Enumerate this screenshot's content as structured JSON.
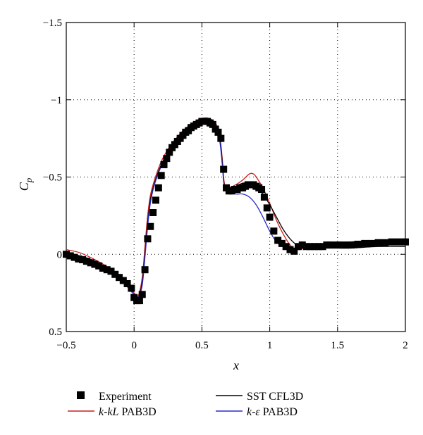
{
  "chart_data": {
    "type": "scatter",
    "title": "",
    "xlabel": "x",
    "ylabel_main": "C",
    "ylabel_sub": "p",
    "xlim": [
      -0.5,
      2
    ],
    "ylim": [
      0.5,
      -1.5
    ],
    "y_inverted": true,
    "grid": "dotted",
    "legend_position": "below",
    "x_ticks": [
      -0.5,
      0,
      0.5,
      1,
      1.5,
      2
    ],
    "x_tick_labels": [
      "−0.5",
      "0",
      "0.5",
      "1",
      "1.5",
      "2"
    ],
    "y_ticks": [
      -1.5,
      -1,
      -0.5,
      0,
      0.5
    ],
    "y_tick_labels": [
      "−1.5",
      "−1",
      "−0.5",
      "0",
      "0.5"
    ],
    "series": [
      {
        "name": "Experiment",
        "kind": "markers",
        "color": "#000000",
        "x": [
          -0.5,
          -0.47,
          -0.44,
          -0.41,
          -0.38,
          -0.35,
          -0.32,
          -0.29,
          -0.26,
          -0.23,
          -0.2,
          -0.17,
          -0.14,
          -0.11,
          -0.08,
          -0.05,
          -0.02,
          0.0,
          0.02,
          0.04,
          0.06,
          0.08,
          0.1,
          0.12,
          0.14,
          0.16,
          0.18,
          0.2,
          0.22,
          0.24,
          0.26,
          0.28,
          0.3,
          0.32,
          0.34,
          0.36,
          0.38,
          0.4,
          0.42,
          0.44,
          0.46,
          0.48,
          0.5,
          0.52,
          0.54,
          0.56,
          0.58,
          0.6,
          0.62,
          0.64,
          0.66,
          0.68,
          0.7,
          0.72,
          0.74,
          0.76,
          0.78,
          0.8,
          0.82,
          0.84,
          0.86,
          0.88,
          0.9,
          0.92,
          0.94,
          0.96,
          0.98,
          1.0,
          1.03,
          1.06,
          1.09,
          1.12,
          1.15,
          1.18,
          1.21,
          1.24,
          1.27,
          1.3,
          1.33,
          1.36,
          1.39,
          1.42,
          1.45,
          1.5,
          1.55,
          1.6,
          1.65,
          1.7,
          1.75,
          1.8,
          1.85,
          1.9,
          1.95,
          2.0
        ],
        "y": [
          0.0,
          0.01,
          0.02,
          0.03,
          0.035,
          0.045,
          0.055,
          0.065,
          0.075,
          0.09,
          0.1,
          0.11,
          0.13,
          0.15,
          0.17,
          0.19,
          0.22,
          0.28,
          0.3,
          0.3,
          0.26,
          0.1,
          -0.1,
          -0.18,
          -0.27,
          -0.35,
          -0.43,
          -0.51,
          -0.58,
          -0.62,
          -0.66,
          -0.69,
          -0.71,
          -0.73,
          -0.75,
          -0.77,
          -0.79,
          -0.8,
          -0.82,
          -0.83,
          -0.84,
          -0.85,
          -0.86,
          -0.86,
          -0.86,
          -0.85,
          -0.84,
          -0.81,
          -0.79,
          -0.75,
          -0.55,
          -0.43,
          -0.41,
          -0.41,
          -0.42,
          -0.42,
          -0.43,
          -0.43,
          -0.44,
          -0.45,
          -0.45,
          -0.45,
          -0.44,
          -0.43,
          -0.42,
          -0.37,
          -0.3,
          -0.24,
          -0.15,
          -0.09,
          -0.07,
          -0.05,
          -0.03,
          -0.02,
          -0.05,
          -0.06,
          -0.05,
          -0.05,
          -0.05,
          -0.05,
          -0.05,
          -0.06,
          -0.06,
          -0.06,
          -0.06,
          -0.06,
          -0.065,
          -0.07,
          -0.07,
          -0.075,
          -0.075,
          -0.08,
          -0.08,
          -0.08
        ]
      },
      {
        "name": "k-kL PAB3D",
        "kind": "line",
        "color": "#cc1f1f",
        "x": [
          -0.5,
          -0.4,
          -0.3,
          -0.2,
          -0.1,
          -0.05,
          0.0,
          0.03,
          0.06,
          0.08,
          0.1,
          0.12,
          0.15,
          0.2,
          0.25,
          0.3,
          0.35,
          0.4,
          0.45,
          0.5,
          0.55,
          0.6,
          0.63,
          0.65,
          0.66,
          0.67,
          0.68,
          0.7,
          0.75,
          0.8,
          0.85,
          0.88,
          0.9,
          0.95,
          1.0,
          1.05,
          1.1,
          1.15,
          1.2,
          1.25,
          1.3,
          1.4,
          1.5,
          1.6,
          1.8,
          2.0
        ],
        "y": [
          -0.03,
          -0.01,
          0.03,
          0.08,
          0.15,
          0.2,
          0.25,
          0.27,
          0.15,
          -0.05,
          -0.25,
          -0.38,
          -0.48,
          -0.6,
          -0.68,
          -0.74,
          -0.79,
          -0.83,
          -0.86,
          -0.88,
          -0.88,
          -0.85,
          -0.77,
          -0.62,
          -0.5,
          -0.44,
          -0.43,
          -0.43,
          -0.45,
          -0.48,
          -0.52,
          -0.52,
          -0.5,
          -0.43,
          -0.33,
          -0.22,
          -0.13,
          -0.06,
          -0.03,
          -0.04,
          -0.05,
          -0.06,
          -0.07,
          -0.08,
          -0.09,
          -0.1
        ]
      },
      {
        "name": "SST CFL3D",
        "kind": "line",
        "color": "#000000",
        "x": [
          -0.5,
          -0.4,
          -0.3,
          -0.2,
          -0.1,
          -0.05,
          0.0,
          0.03,
          0.06,
          0.08,
          0.1,
          0.12,
          0.15,
          0.2,
          0.25,
          0.3,
          0.35,
          0.4,
          0.45,
          0.5,
          0.55,
          0.6,
          0.63,
          0.65,
          0.66,
          0.67,
          0.68,
          0.7,
          0.75,
          0.8,
          0.85,
          0.9,
          0.95,
          1.0,
          1.05,
          1.1,
          1.15,
          1.2,
          1.25,
          1.3,
          1.35,
          1.4,
          1.5,
          1.6,
          1.8,
          2.0
        ],
        "y": [
          -0.01,
          0.01,
          0.04,
          0.09,
          0.16,
          0.21,
          0.26,
          0.28,
          0.18,
          0.0,
          -0.2,
          -0.35,
          -0.46,
          -0.58,
          -0.66,
          -0.72,
          -0.77,
          -0.81,
          -0.84,
          -0.86,
          -0.86,
          -0.83,
          -0.76,
          -0.6,
          -0.48,
          -0.43,
          -0.42,
          -0.42,
          -0.44,
          -0.46,
          -0.46,
          -0.44,
          -0.39,
          -0.32,
          -0.24,
          -0.16,
          -0.1,
          -0.06,
          -0.04,
          -0.04,
          -0.04,
          -0.04,
          -0.04,
          -0.04,
          -0.05,
          -0.05
        ]
      },
      {
        "name": "k-ε PAB3D",
        "kind": "line",
        "color": "#2a2acc",
        "x": [
          -0.5,
          -0.4,
          -0.3,
          -0.2,
          -0.1,
          -0.05,
          0.0,
          0.03,
          0.06,
          0.08,
          0.1,
          0.12,
          0.15,
          0.2,
          0.25,
          0.3,
          0.35,
          0.4,
          0.45,
          0.5,
          0.55,
          0.6,
          0.63,
          0.65,
          0.66,
          0.67,
          0.68,
          0.7,
          0.75,
          0.8,
          0.85,
          0.9,
          0.95,
          1.0,
          1.05,
          1.1,
          1.15,
          1.2,
          1.25,
          1.3,
          1.4,
          1.5,
          1.6,
          1.8,
          2.0
        ],
        "y": [
          -0.01,
          0.01,
          0.04,
          0.09,
          0.16,
          0.21,
          0.26,
          0.28,
          0.2,
          0.02,
          -0.18,
          -0.33,
          -0.45,
          -0.57,
          -0.65,
          -0.71,
          -0.76,
          -0.8,
          -0.83,
          -0.84,
          -0.84,
          -0.81,
          -0.74,
          -0.58,
          -0.47,
          -0.42,
          -0.41,
          -0.4,
          -0.39,
          -0.39,
          -0.37,
          -0.32,
          -0.24,
          -0.15,
          -0.08,
          -0.05,
          -0.04,
          -0.04,
          -0.04,
          -0.05,
          -0.06,
          -0.07,
          -0.08,
          -0.09,
          -0.09
        ]
      }
    ]
  },
  "legend": {
    "experiment": "Experiment",
    "kkl_ital": "k-kL",
    "kkl_rest": " PAB3D",
    "sst": "SST CFL3D",
    "ke_ital": "k-ε",
    "ke_rest": " PAB3D"
  }
}
